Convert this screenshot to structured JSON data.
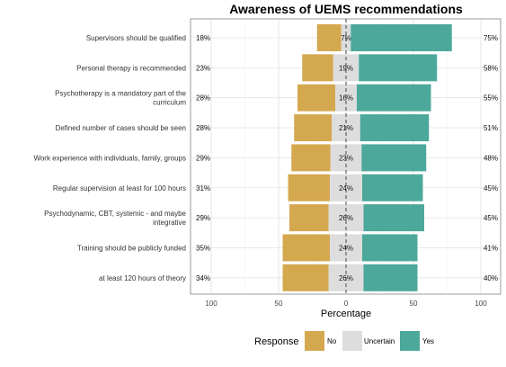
{
  "chart_data": {
    "type": "bar",
    "orientation": "horizontal",
    "stacking": "diverging",
    "title": "Awareness of UEMS recommendations",
    "xlabel": "Percentage",
    "ylabel": "",
    "xlim": [
      -100,
      100
    ],
    "x_ticks": [
      -100,
      -50,
      0,
      50,
      100
    ],
    "x_tick_labels": [
      "100",
      "50",
      "0",
      "50",
      "100"
    ],
    "grid": true,
    "legend_position": "bottom",
    "legend_title": "Response",
    "categories": [
      "Supervisors should be qualified",
      "Personal therapy is recommended",
      "Psychotherapy is a mandatory part of the curriculum",
      "Defined number of cases should be seen",
      "Work experience with individuals, family, groups",
      "Regular supervision at least for 100 hours",
      "Psychodynamic, CBT, systemic - and maybe integrative",
      "Training should be publicly funded",
      "at least 120 hours of theory"
    ],
    "category_label_lines": [
      [
        "Supervisors should be qualified"
      ],
      [
        "Personal therapy is recommended"
      ],
      [
        "Psychotherapy is a mandatory part of the",
        "curriculum"
      ],
      [
        "Defined number of cases should be seen"
      ],
      [
        "Work experience with individuals, family, groups"
      ],
      [
        "Regular supervision at least for 100 hours"
      ],
      [
        "Psychodynamic, CBT, systemic - and maybe",
        "integrative"
      ],
      [
        "Training should be publicly funded"
      ],
      [
        "at least 120 hours of theory"
      ]
    ],
    "series": [
      {
        "name": "No",
        "color": "#d4a84f",
        "values": [
          18,
          23,
          28,
          28,
          29,
          31,
          29,
          35,
          34
        ]
      },
      {
        "name": "Uncertain",
        "color": "#dddddd",
        "values": [
          7,
          19,
          16,
          21,
          23,
          24,
          26,
          24,
          26
        ]
      },
      {
        "name": "Yes",
        "color": "#4ba89b",
        "values": [
          75,
          58,
          55,
          51,
          48,
          45,
          45,
          41,
          40
        ]
      }
    ],
    "value_labels": {
      "no": [
        "18%",
        "23%",
        "28%",
        "28%",
        "29%",
        "31%",
        "29%",
        "35%",
        "34%"
      ],
      "uncertain": [
        "7%",
        "19%",
        "16%",
        "21%",
        "23%",
        "24%",
        "26%",
        "24%",
        "26%"
      ],
      "yes": [
        "75%",
        "58%",
        "55%",
        "51%",
        "48%",
        "45%",
        "45%",
        "41%",
        "40%"
      ]
    }
  }
}
